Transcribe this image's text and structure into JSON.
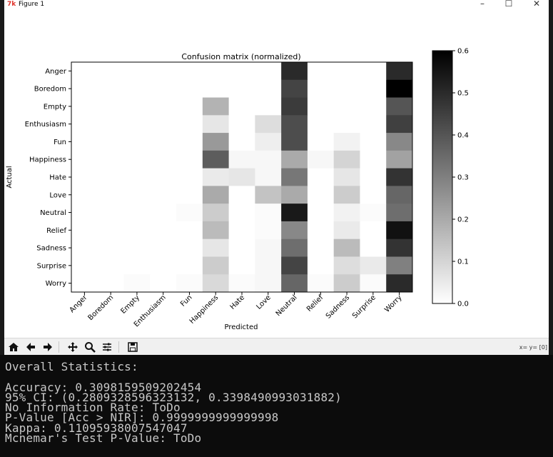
{
  "window": {
    "title": "Figure 1",
    "app_icon_glyph": "7k",
    "minimize_glyph": "–",
    "maximize_glyph": "☐",
    "close_glyph": "✕"
  },
  "toolbar": {
    "home": "home-icon",
    "back": "back-arrow-icon",
    "forward": "forward-arrow-icon",
    "pan": "pan-icon",
    "zoom": "zoom-icon",
    "configure": "configure-subplots-icon",
    "save": "save-icon",
    "coordinates": "x= y= [0]"
  },
  "chart_data": {
    "type": "heatmap",
    "title": "Confusion matrix (normalized)",
    "xlabel": "Predicted",
    "ylabel": "Actual",
    "colormap": "Greys",
    "vmin": 0.0,
    "vmax": 0.6,
    "colorbar_ticks": [
      "0.0",
      "0.1",
      "0.2",
      "0.3",
      "0.4",
      "0.5",
      "0.6"
    ],
    "labels": [
      "Anger",
      "Boredom",
      "Empty",
      "Enthusiasm",
      "Fun",
      "Happiness",
      "Hate",
      "Love",
      "Neutral",
      "Relief",
      "Sadness",
      "Surprise",
      "Worry"
    ],
    "matrix": [
      [
        0,
        0,
        0,
        0,
        0,
        0,
        0,
        0,
        0.5,
        0,
        0,
        0,
        0.5
      ],
      [
        0,
        0,
        0,
        0,
        0,
        0,
        0,
        0,
        0.44,
        0,
        0,
        0,
        0.6
      ],
      [
        0,
        0,
        0,
        0,
        0,
        0.18,
        0,
        0,
        0.46,
        0,
        0,
        0,
        0.4
      ],
      [
        0,
        0,
        0,
        0,
        0,
        0.06,
        0,
        0.08,
        0.42,
        0,
        0,
        0,
        0.45
      ],
      [
        0,
        0,
        0,
        0,
        0,
        0.24,
        0,
        0.04,
        0.42,
        0,
        0.03,
        0,
        0.28
      ],
      [
        0,
        0,
        0,
        0,
        0,
        0.38,
        0.02,
        0.02,
        0.2,
        0.02,
        0.1,
        0,
        0.22
      ],
      [
        0,
        0,
        0,
        0,
        0,
        0.05,
        0.06,
        0.02,
        0.32,
        0,
        0.06,
        0,
        0.48
      ],
      [
        0,
        0,
        0,
        0,
        0,
        0.2,
        0,
        0.14,
        0.2,
        0,
        0.12,
        0,
        0.36
      ],
      [
        0,
        0,
        0,
        0,
        0.01,
        0.12,
        0,
        0.01,
        0.54,
        0,
        0.03,
        0.01,
        0.34
      ],
      [
        0,
        0,
        0,
        0,
        0,
        0.16,
        0,
        0.01,
        0.28,
        0,
        0.05,
        0,
        0.56
      ],
      [
        0,
        0,
        0,
        0,
        0,
        0.06,
        0,
        0.02,
        0.34,
        0,
        0.16,
        0,
        0.48
      ],
      [
        0,
        0,
        0,
        0,
        0,
        0.12,
        0,
        0.02,
        0.44,
        0,
        0.08,
        0.05,
        0.3
      ],
      [
        0,
        0,
        0.01,
        0,
        0.01,
        0.09,
        0.01,
        0.02,
        0.36,
        0.01,
        0.12,
        0.01,
        0.5
      ]
    ]
  },
  "console": {
    "lines": [
      "Overall Statistics:",
      "",
      "Accuracy: 0.3098159509202454",
      "95% CI: (0.2809328596323132, 0.3398490993031882)",
      "No Information Rate: ToDo",
      "P-Value [Acc > NIR]: 0.9999999999999998",
      "Kappa: 0.11095938007547047",
      "Mcnemar's Test P-Value: ToDo"
    ]
  }
}
